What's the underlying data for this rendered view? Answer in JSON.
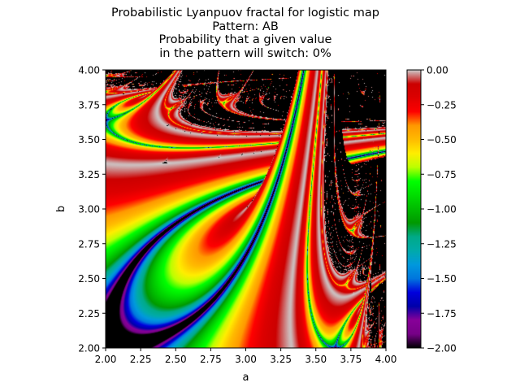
{
  "chart_data": {
    "type": "heatmap",
    "title_lines": [
      "Probabilistic Lyanpuov fractal for logistic map",
      "Pattern: AB",
      "Probability that a given value",
      "in the pattern will switch: 0%"
    ],
    "xlabel": "a",
    "ylabel": "b",
    "xlim": [
      2.0,
      4.0
    ],
    "ylim": [
      2.0,
      4.0
    ],
    "xticks": [
      "2.00",
      "2.25",
      "2.50",
      "2.75",
      "3.00",
      "3.25",
      "3.50",
      "3.75",
      "4.00"
    ],
    "yticks": [
      "2.00",
      "2.25",
      "2.50",
      "2.75",
      "3.00",
      "3.25",
      "3.50",
      "3.75",
      "4.00"
    ],
    "colorbar": {
      "range": [
        -2.0,
        0.0
      ],
      "ticks": [
        "0.00",
        "−0.25",
        "−0.50",
        "−0.75",
        "−1.00",
        "−1.25",
        "−1.50",
        "−1.75",
        "−2.00"
      ],
      "tick_values": [
        0.0,
        -0.25,
        -0.5,
        -0.75,
        -1.0,
        -1.25,
        -1.5,
        -1.75,
        -2.0
      ],
      "colormap": "nipy_spectral"
    },
    "function": "logistic map, alternating r sequence A,B (a,b)",
    "pattern": "AB",
    "switch_probability": 0,
    "grid": false
  }
}
